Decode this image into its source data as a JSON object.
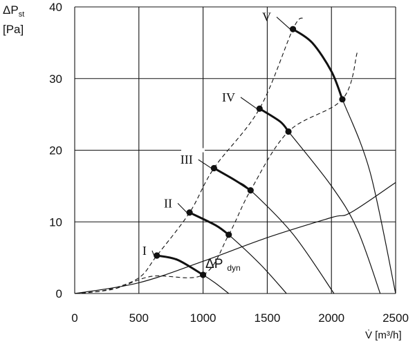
{
  "chart_data": {
    "type": "line",
    "title": "",
    "ylabel": "ΔP",
    "ylabel_sub": "st",
    "yunit": "[Pa]",
    "xlabel": "V̇ [m³/h]",
    "xlim": [
      0,
      2500
    ],
    "ylim": [
      0,
      40
    ],
    "xticks": [
      0,
      500,
      1000,
      1500,
      2000,
      2500
    ],
    "yticks": [
      0,
      10,
      20,
      30,
      40
    ],
    "grid": true,
    "series": [
      {
        "name": "I",
        "style": "fan-curve",
        "points": [
          [
            640,
            5.3
          ],
          [
            800,
            4.7
          ],
          [
            1000,
            2.6
          ],
          [
            1100,
            1.4
          ],
          [
            1200,
            0
          ]
        ]
      },
      {
        "name": "II",
        "style": "fan-curve",
        "points": [
          [
            895,
            11.3
          ],
          [
            1100,
            9.5
          ],
          [
            1200,
            8.2
          ],
          [
            1450,
            4.0
          ],
          [
            1650,
            0
          ]
        ]
      },
      {
        "name": "III",
        "style": "fan-curve",
        "points": [
          [
            1085,
            17.5
          ],
          [
            1250,
            15.8
          ],
          [
            1370,
            14.4
          ],
          [
            1700,
            8.3
          ],
          [
            2020,
            0
          ]
        ]
      },
      {
        "name": "IV",
        "style": "fan-curve",
        "points": [
          [
            1440,
            25.8
          ],
          [
            1600,
            24.0
          ],
          [
            1665,
            22.6
          ],
          [
            2000,
            15.0
          ],
          [
            2200,
            9.0
          ],
          [
            2380,
            0
          ]
        ]
      },
      {
        "name": "V",
        "style": "fan-curve",
        "points": [
          [
            1700,
            36.9
          ],
          [
            1850,
            35.0
          ],
          [
            2000,
            31.0
          ],
          [
            2085,
            27.1
          ],
          [
            2300,
            17.0
          ],
          [
            2500,
            0
          ]
        ]
      },
      {
        "name": "ΔP dyn",
        "name_main": "ΔP",
        "name_sub": "dyn",
        "style": "solid-thin",
        "points": [
          [
            0,
            0
          ],
          [
            500,
            1.5
          ],
          [
            1000,
            4.5
          ],
          [
            1500,
            7.8
          ],
          [
            2000,
            10.6
          ],
          [
            2150,
            11.3
          ],
          [
            2500,
            15.5
          ]
        ]
      },
      {
        "name": "",
        "style": "dashed",
        "points": [
          [
            0,
            0
          ],
          [
            250,
            0.5
          ],
          [
            500,
            2.2
          ],
          [
            640,
            5.3
          ],
          [
            895,
            11.3
          ],
          [
            1085,
            17.5
          ],
          [
            1440,
            25.8
          ],
          [
            1700,
            36.9
          ],
          [
            1780,
            38.5
          ]
        ]
      },
      {
        "name": "",
        "style": "dashed",
        "points": [
          [
            0,
            0
          ],
          [
            300,
            0.6
          ],
          [
            600,
            2.4
          ],
          [
            1000,
            2.6
          ],
          [
            1200,
            8.2
          ],
          [
            1370,
            14.4
          ],
          [
            1665,
            22.6
          ],
          [
            2085,
            27.1
          ],
          [
            2200,
            33.6
          ]
        ]
      }
    ],
    "operating_points": [
      [
        640,
        5.3
      ],
      [
        1000,
        2.6
      ],
      [
        895,
        11.3
      ],
      [
        1200,
        8.2
      ],
      [
        1085,
        17.5
      ],
      [
        1370,
        14.4
      ],
      [
        1440,
        25.8
      ],
      [
        1665,
        22.6
      ],
      [
        1700,
        36.9
      ],
      [
        2085,
        27.1
      ]
    ],
    "annotations": [
      {
        "text": "I",
        "x": 560,
        "y": 5.6
      },
      {
        "text": "II",
        "x": 760,
        "y": 12.2
      },
      {
        "text": "III",
        "x": 920,
        "y": 18.3
      },
      {
        "text": "IV",
        "x": 1250,
        "y": 27.0
      },
      {
        "text": "V",
        "x": 1530,
        "y": 38.2
      }
    ]
  }
}
